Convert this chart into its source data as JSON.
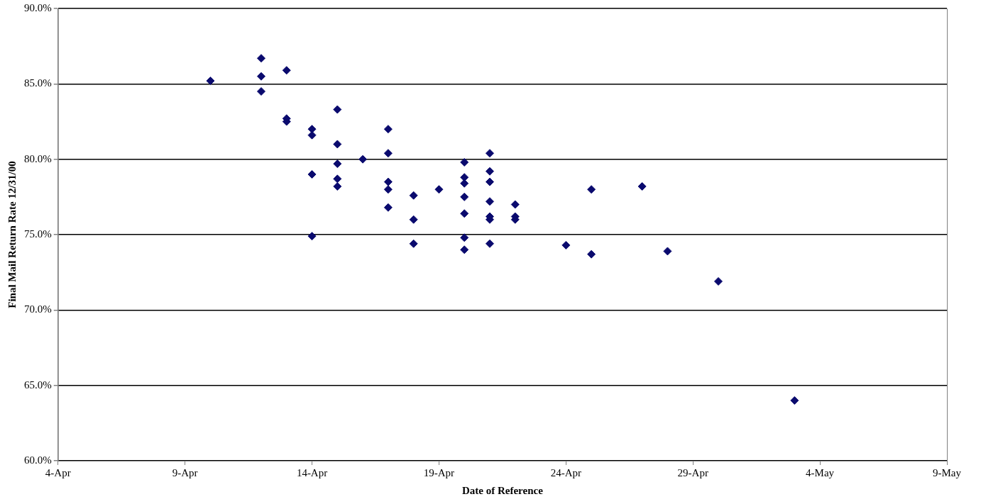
{
  "chart_data": {
    "type": "scatter",
    "xlabel": "Date of Reference",
    "ylabel": "Final Mail Return Rate 12/31/00",
    "x": [
      "--04-10",
      "--04-12",
      "--04-12",
      "--04-12",
      "--04-13",
      "--04-13",
      "--04-13",
      "--04-14",
      "--04-14",
      "--04-14",
      "--04-14",
      "--04-15",
      "--04-15",
      "--04-15",
      "--04-15",
      "--04-15",
      "--04-16",
      "--04-17",
      "--04-17",
      "--04-17",
      "--04-17",
      "--04-17",
      "--04-18",
      "--04-18",
      "--04-18",
      "--04-19",
      "--04-20",
      "--04-20",
      "--04-20",
      "--04-20",
      "--04-20",
      "--04-20",
      "--04-20",
      "--04-21",
      "--04-21",
      "--04-21",
      "--04-21",
      "--04-21",
      "--04-21",
      "--04-21",
      "--04-22",
      "--04-22",
      "--04-22",
      "--04-24",
      "--04-25",
      "--04-25",
      "--04-27",
      "--04-28",
      "--04-30",
      "--05-03"
    ],
    "series": [
      {
        "color": "#0a0a6e",
        "values": [
          85.2,
          86.7,
          85.5,
          84.5,
          85.9,
          82.7,
          82.5,
          82.0,
          81.6,
          79.0,
          74.9,
          83.3,
          81.0,
          79.7,
          78.7,
          78.2,
          80.0,
          82.0,
          80.4,
          78.5,
          78.0,
          76.8,
          77.6,
          76.0,
          74.4,
          78.0,
          79.8,
          78.8,
          78.4,
          77.5,
          76.4,
          74.8,
          74.0,
          80.4,
          79.2,
          78.5,
          77.2,
          76.2,
          76.0,
          74.4,
          77.0,
          76.2,
          76.0,
          74.3,
          78.0,
          73.7,
          78.2,
          73.9,
          71.9,
          64.0
        ]
      }
    ],
    "xlim": [
      "--04-04",
      "--05-09"
    ],
    "xticks": [
      {
        "value": "--04-04",
        "label": "4-Apr"
      },
      {
        "value": "--04-09",
        "label": "9-Apr"
      },
      {
        "value": "--04-14",
        "label": "14-Apr"
      },
      {
        "value": "--04-19",
        "label": "19-Apr"
      },
      {
        "value": "--04-24",
        "label": "24-Apr"
      },
      {
        "value": "--04-29",
        "label": "29-Apr"
      },
      {
        "value": "--05-04",
        "label": "4-May"
      },
      {
        "value": "--05-09",
        "label": "9-May"
      }
    ],
    "ylim": [
      60,
      90
    ],
    "yticks": [
      {
        "value": 60,
        "label": "60.0%"
      },
      {
        "value": 65,
        "label": "65.0%"
      },
      {
        "value": 70,
        "label": "70.0%"
      },
      {
        "value": 75,
        "label": "75.0%"
      },
      {
        "value": 80,
        "label": "80.0%"
      },
      {
        "value": 85,
        "label": "85.0%"
      },
      {
        "value": 90,
        "label": "90.0%"
      }
    ],
    "grid": "y",
    "marker": "diamond"
  }
}
